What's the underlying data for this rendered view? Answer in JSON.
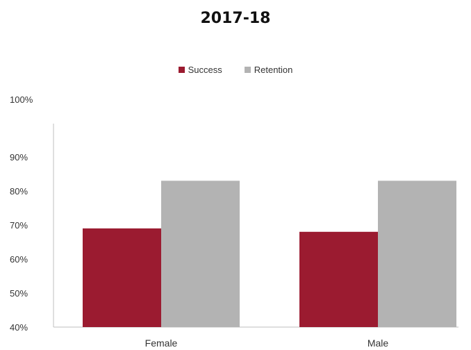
{
  "chart_data": {
    "type": "bar",
    "title": "2017-18",
    "categories": [
      "Female",
      "Male"
    ],
    "series": [
      {
        "name": "Success",
        "values": [
          69,
          68
        ],
        "color": "#9b1b30"
      },
      {
        "name": "Retention",
        "values": [
          83,
          83
        ],
        "color": "#b3b3b3"
      }
    ],
    "ylim": [
      40,
      100
    ],
    "yticks": [
      "40%",
      "50%",
      "60%",
      "70%",
      "80%",
      "90%",
      "100%"
    ],
    "grid": false,
    "legend_position": "top"
  }
}
